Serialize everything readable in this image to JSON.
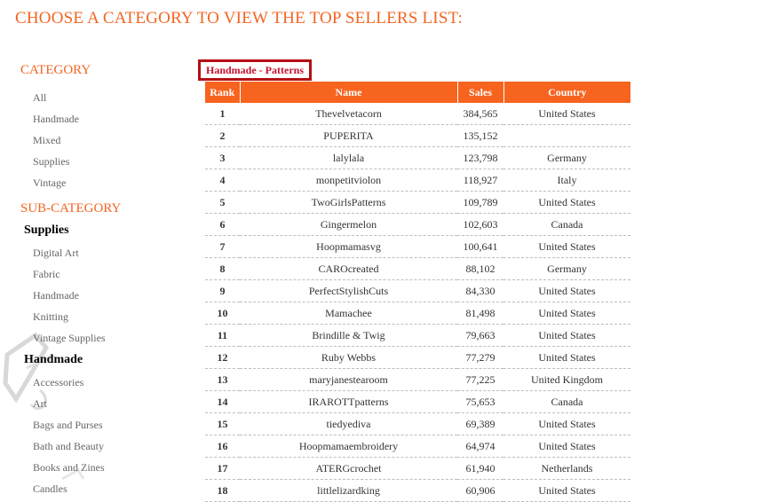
{
  "heading": "CHOOSE A CATEGORY TO VIEW THE TOP SELLERS LIST:",
  "sidebar": {
    "category_title": "CATEGORY",
    "categories": [
      "All",
      "Handmade",
      "Mixed",
      "Supplies",
      "Vintage"
    ],
    "subcategory_title": "SUB-CATEGORY",
    "supplies_group": {
      "label": "Supplies",
      "items": [
        "Digital Art",
        "Fabric",
        "Handmade",
        "Knitting",
        "Vintage Supplies"
      ]
    },
    "handmade_group": {
      "label": "Handmade",
      "items": [
        "Accessories",
        "Art",
        "Bags and Purses",
        "Bath and Beauty",
        "Books and Zines",
        "Candles"
      ]
    }
  },
  "table": {
    "caption": "Handmade - Patterns",
    "columns": [
      "Rank",
      "Name",
      "Sales",
      "Country"
    ],
    "rows": [
      {
        "rank": "1",
        "name": "Thevelvetacorn",
        "sales": "384,565",
        "country": "United States"
      },
      {
        "rank": "2",
        "name": "PUPERITA",
        "sales": "135,152",
        "country": ""
      },
      {
        "rank": "3",
        "name": "lalylala",
        "sales": "123,798",
        "country": "Germany"
      },
      {
        "rank": "4",
        "name": "monpetitviolon",
        "sales": "118,927",
        "country": "Italy"
      },
      {
        "rank": "5",
        "name": "TwoGirlsPatterns",
        "sales": "109,789",
        "country": "United States"
      },
      {
        "rank": "6",
        "name": "Gingermelon",
        "sales": "102,603",
        "country": "Canada"
      },
      {
        "rank": "7",
        "name": "Hoopmamasvg",
        "sales": "100,641",
        "country": "United States"
      },
      {
        "rank": "8",
        "name": "CAROcreated",
        "sales": "88,102",
        "country": "Germany"
      },
      {
        "rank": "9",
        "name": "PerfectStylishCuts",
        "sales": "84,330",
        "country": "United States"
      },
      {
        "rank": "10",
        "name": "Mamachee",
        "sales": "81,498",
        "country": "United States"
      },
      {
        "rank": "11",
        "name": "Brindille & Twig",
        "sales": "79,663",
        "country": "United States"
      },
      {
        "rank": "12",
        "name": "Ruby Webbs",
        "sales": "77,279",
        "country": "United States"
      },
      {
        "rank": "13",
        "name": "maryjanestearoom",
        "sales": "77,225",
        "country": "United Kingdom"
      },
      {
        "rank": "14",
        "name": "IRAROTTpatterns",
        "sales": "75,653",
        "country": "Canada"
      },
      {
        "rank": "15",
        "name": "tiedyediva",
        "sales": "69,389",
        "country": "United States"
      },
      {
        "rank": "16",
        "name": "Hoopmamaembroidery",
        "sales": "64,974",
        "country": "United States"
      },
      {
        "rank": "17",
        "name": "ATERGcrochet",
        "sales": "61,940",
        "country": "Netherlands"
      },
      {
        "rank": "18",
        "name": "littlelizardking",
        "sales": "60,906",
        "country": "United States"
      }
    ]
  },
  "colors": {
    "accent": "#f26522",
    "header_bg": "#f7641f",
    "caption_border": "#b50e14",
    "caption_text": "#c8102e"
  }
}
